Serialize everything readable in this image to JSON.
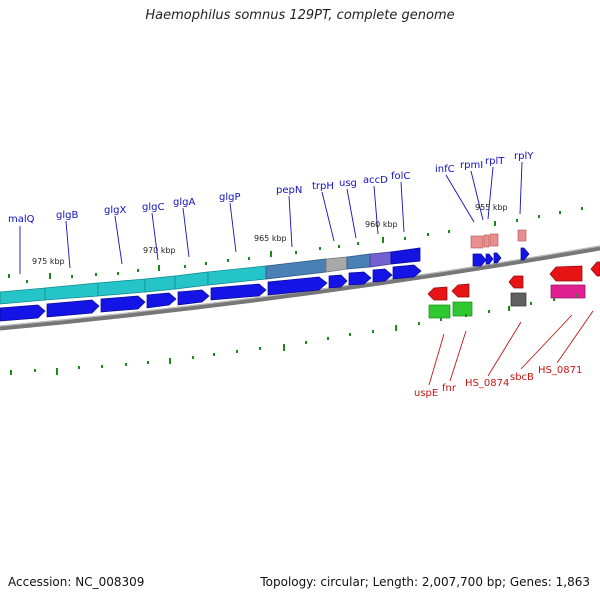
{
  "title": "Haemophilus somnus 129PT, complete genome",
  "footer": {
    "accession": "Accession: NC_008309",
    "topology": "Topology: circular; Length: 2,007,700 bp; Genes: 1,863"
  },
  "scale": {
    "ticks": [
      "975 kbp",
      "970 kbp",
      "965 kbp",
      "960 kbp",
      "955 kbp"
    ]
  },
  "colors": {
    "cds_forward": "#1414e6",
    "cds_reverse": "#e61414",
    "track_cyan": "#20c8c8",
    "track_steel": "#4a80b4",
    "backbone": "#707070",
    "ticks": "#1a8a1a",
    "label_forward": "#1010c0",
    "label_reverse": "#c81414"
  },
  "genes_forward": [
    "malQ",
    "glgB",
    "glgX",
    "glgC",
    "glgA",
    "glgP",
    "pepN",
    "trpH",
    "usg",
    "accD",
    "folC",
    "infC",
    "rpmI",
    "rplT",
    "rplY"
  ],
  "genes_reverse": [
    "uspE",
    "fnr",
    "HS_0874",
    "sbcB",
    "HS_0871"
  ]
}
